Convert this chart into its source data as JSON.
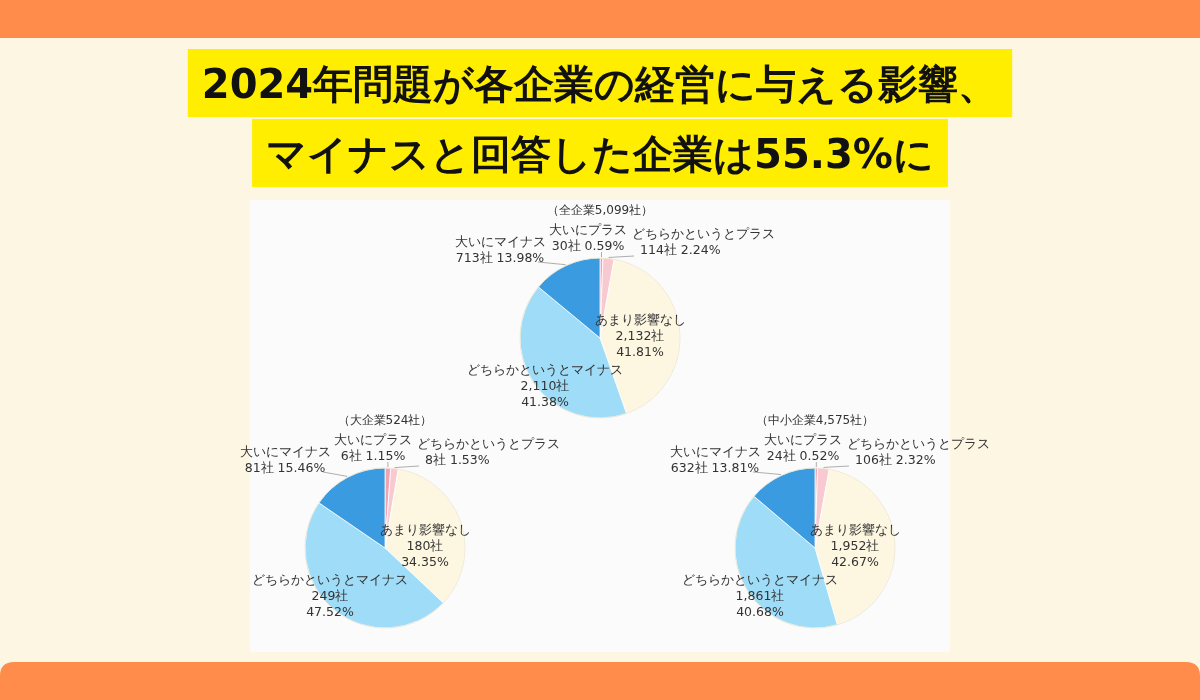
{
  "chart_data": [
    {
      "type": "other",
      "title": "2024年問題が各企業の経営に与える影響、",
      "subtitle": "マイナスと回答した企業は55.3%に"
    },
    {
      "type": "pie",
      "title": "（全企業5,099社）",
      "categories": [
        "大いにプラス",
        "どちらかというとプラス",
        "あまり影響なし",
        "どちらかというとマイナス",
        "大いにマイナス"
      ],
      "values": [
        30,
        114,
        2132,
        2110,
        713
      ],
      "colors": [
        "#f2a3b0",
        "#f8c9d0",
        "#fdf7e2",
        "#9fdcf8",
        "#3a9be0"
      ],
      "value_labels": [
        "30社 0.59%",
        "114社 2.24%",
        "2,132社 41.81%",
        "2,110社 41.38%",
        "713社 13.98%"
      ]
    },
    {
      "type": "pie",
      "title": "（大企業524社）",
      "categories": [
        "大いにプラス",
        "どちらかというとプラス",
        "あまり影響なし",
        "どちらかというとマイナス",
        "大いにマイナス"
      ],
      "values": [
        6,
        8,
        180,
        249,
        81
      ],
      "colors": [
        "#f2a3b0",
        "#f8c9d0",
        "#fdf7e2",
        "#9fdcf8",
        "#3a9be0"
      ],
      "value_labels": [
        "6社 1.15%",
        "8社 1.53%",
        "180社 34.35%",
        "249社 47.52%",
        "81社 15.46%"
      ]
    },
    {
      "type": "pie",
      "title": "（中小企業4,575社）",
      "categories": [
        "大いにプラス",
        "どちらかというとプラス",
        "あまり影響なし",
        "どちらかというとマイナス",
        "大いにマイナス"
      ],
      "values": [
        24,
        106,
        1952,
        1861,
        632
      ],
      "colors": [
        "#f2a3b0",
        "#f8c9d0",
        "#fdf7e2",
        "#9fdcf8",
        "#3a9be0"
      ],
      "value_labels": [
        "24社 0.52%",
        "106社 2.32%",
        "1,952社 42.67%",
        "1,861社 40.68%",
        "632社 13.81%"
      ]
    }
  ]
}
